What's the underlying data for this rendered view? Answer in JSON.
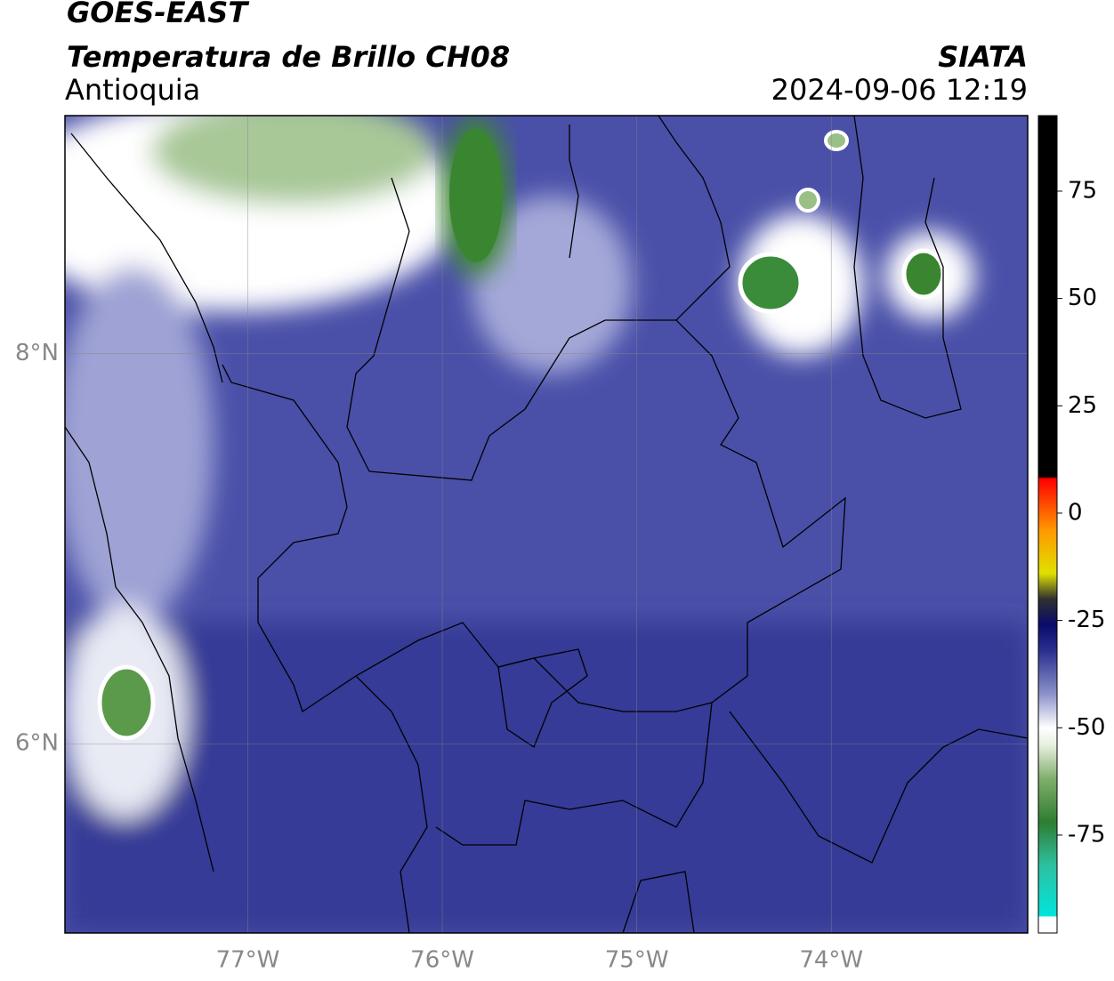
{
  "header": {
    "title": "GOES-EAST",
    "subtitle": "Temperatura de Brillo CH08",
    "region": "Antioquia",
    "source": "SIATA",
    "timestamp": "2024-09-06 12:19"
  },
  "map": {
    "lonlim": [
      -77.94,
      -72.99
    ],
    "latlim": [
      5.03,
      9.22
    ],
    "lon_ticks": [
      {
        "value": -77,
        "label": "77°W"
      },
      {
        "value": -76,
        "label": "76°W"
      },
      {
        "value": -75,
        "label": "75°W"
      },
      {
        "value": -74,
        "label": "74°W"
      }
    ],
    "lat_ticks": [
      {
        "value": 8,
        "label": "8°N"
      },
      {
        "value": 6,
        "label": "6°N"
      }
    ]
  },
  "colorbar": {
    "range": [
      -97.8,
      92.6
    ],
    "ticks": [
      75,
      50,
      25,
      0,
      -25,
      -50,
      -75
    ],
    "colors": [
      {
        "value": -97.8,
        "color": "#ffffff"
      },
      {
        "value": -94,
        "color": "#ffffff"
      },
      {
        "value": -93.9,
        "color": "#00e5dc"
      },
      {
        "value": -82,
        "color": "#2ec0a0"
      },
      {
        "value": -72,
        "color": "#2e7d32"
      },
      {
        "value": -62,
        "color": "#7fae6a"
      },
      {
        "value": -54,
        "color": "#e8f0e0"
      },
      {
        "value": -50,
        "color": "#ffffff"
      },
      {
        "value": -42,
        "color": "#8a90c8"
      },
      {
        "value": -32,
        "color": "#2a2f8f"
      },
      {
        "value": -26,
        "color": "#0a0a6a"
      },
      {
        "value": -20,
        "color": "#303030"
      },
      {
        "value": -14,
        "color": "#e0e000"
      },
      {
        "value": -4,
        "color": "#ff9900"
      },
      {
        "value": 8,
        "color": "#ff0000"
      },
      {
        "value": 8.5,
        "color": "#000000"
      },
      {
        "value": 92.6,
        "color": "#000000"
      }
    ]
  }
}
